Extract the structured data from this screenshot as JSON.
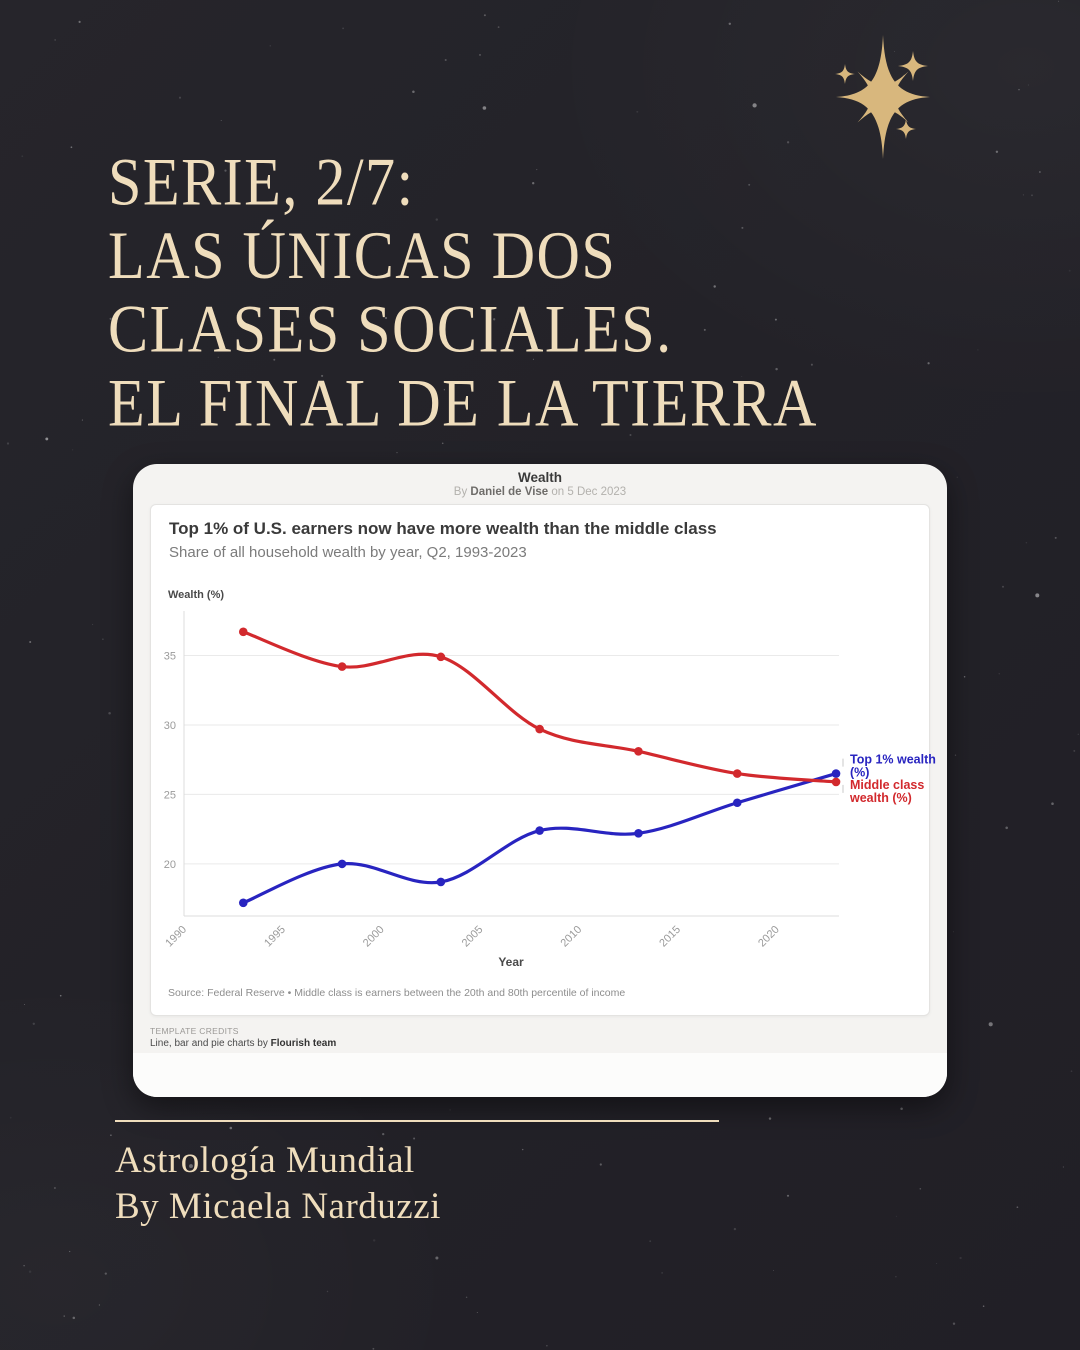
{
  "post": {
    "title_lines": [
      "SERIE, 2/7:",
      "LAS ÚNICAS DOS",
      "CLASES SOCIALES.",
      "EL FINAL DE LA TIERRA"
    ],
    "footer": {
      "brand": "Astrología Mundial",
      "byline": "By Micaela Narduzzi"
    },
    "colors": {
      "background": "#242329",
      "cream": "#efddbc",
      "star_gold": "#d8b77d"
    }
  },
  "chart_card": {
    "header": {
      "title": "Wealth",
      "byline_prefix": "By",
      "author": "Daniel de Vise",
      "date_suffix": "on 5 Dec 2023"
    },
    "title": "Top 1% of U.S. earners now have more wealth than the middle class",
    "subtitle": "Share of all household wealth by year, Q2, 1993-2023",
    "y_axis_title": "Wealth (%)",
    "x_axis_title": "Year",
    "source": "Source: Federal Reserve • Middle class is earners between the 20th and 80th percentile of income",
    "credits_label": "TEMPLATE CREDITS",
    "credits_text": "Line, bar and pie charts by ",
    "credits_team": "Flourish team"
  },
  "chart_data": {
    "type": "line",
    "title": "Top 1% of U.S. earners now have more wealth than the middle class",
    "subtitle": "Share of all household wealth by year, Q2, 1993-2023",
    "xlabel": "Year",
    "ylabel": "Wealth (%)",
    "x": [
      1993,
      1998,
      2003,
      2008,
      2013,
      2018,
      2023
    ],
    "series": [
      {
        "name": "Top 1% wealth (%)",
        "label_lines": [
          "Top 1% wealth",
          "(%)"
        ],
        "color": "#2824c0",
        "values": [
          17.2,
          20.0,
          18.7,
          22.4,
          22.2,
          24.4,
          26.5
        ]
      },
      {
        "name": "Middle class wealth (%)",
        "label_lines": [
          "Middle class",
          "wealth (%)"
        ],
        "color": "#d2292d",
        "values": [
          36.7,
          34.2,
          34.9,
          29.7,
          28.1,
          26.5,
          25.9
        ]
      }
    ],
    "x_ticks": [
      1990,
      1995,
      2000,
      2005,
      2010,
      2015,
      2020
    ],
    "y_ticks": [
      20,
      25,
      30,
      35
    ],
    "xlim": [
      1990,
      2023.15
    ],
    "ylim": [
      16.25,
      38.2
    ],
    "grid": true,
    "legend_position": "right-of-line-end"
  }
}
